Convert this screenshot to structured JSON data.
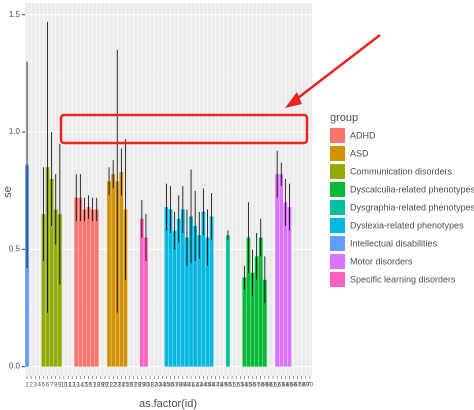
{
  "chart_data": {
    "type": "bar",
    "ylabel": "se",
    "xlabel": "as.factor(id)",
    "legend_title": "group",
    "legend": "right",
    "grid": true,
    "ylim": [
      -0.04,
      1.55
    ],
    "yticks": [
      {
        "value": 0,
        "label": "0.0"
      },
      0.5,
      {
        "value": 1,
        "label": "1.0"
      },
      1.5
    ],
    "categories": [
      "1",
      "2",
      "3",
      "4",
      "5",
      "6",
      "7",
      "8",
      "9",
      "10",
      "11",
      "12",
      "13",
      "14",
      "15",
      "16",
      "17",
      "18",
      "19",
      "20",
      "21",
      "22",
      "23",
      "24",
      "25",
      "26",
      "27",
      "28",
      "29",
      "30",
      "31",
      "32",
      "33",
      "34",
      "35",
      "36",
      "37",
      "38",
      "39",
      "40",
      "41",
      "42",
      "43",
      "44",
      "45",
      "46",
      "47",
      "48",
      "49",
      "50",
      "51",
      "52",
      "53",
      "54",
      "55",
      "56",
      "57",
      "58",
      "59",
      "60",
      "61",
      "62",
      "63",
      "64",
      "65",
      "66",
      "67",
      "68",
      "69",
      "70"
    ],
    "values": [
      0.86,
      null,
      null,
      null,
      0.65,
      0.85,
      0.8,
      0.67,
      0.65,
      null,
      null,
      null,
      0.72,
      0.72,
      0.67,
      0.68,
      0.67,
      0.67,
      null,
      null,
      0.79,
      0.82,
      0.79,
      0.83,
      0.67,
      null,
      null,
      null,
      0.63,
      0.55,
      null,
      null,
      null,
      null,
      0.68,
      0.67,
      0.58,
      0.63,
      0.67,
      0.55,
      0.64,
      0.6,
      0.56,
      0.66,
      0.55,
      0.64,
      null,
      null,
      null,
      0.56,
      null,
      null,
      null,
      0.38,
      0.55,
      0.4,
      0.47,
      0.55,
      0.37,
      null,
      null,
      0.82,
      0.82,
      0.7,
      0.68,
      null,
      null,
      null,
      null,
      null
    ],
    "errors": [
      0.44,
      null,
      null,
      null,
      0.2,
      0.62,
      0.2,
      0.15,
      0.3,
      null,
      null,
      null,
      0.1,
      0.1,
      0.05,
      0.05,
      0.05,
      0.05,
      null,
      null,
      0.06,
      0.06,
      0.56,
      0.1,
      0.3,
      null,
      null,
      null,
      0.08,
      0.1,
      null,
      null,
      null,
      null,
      0.1,
      0.1,
      0.08,
      0.1,
      0.1,
      0.12,
      0.2,
      0.15,
      0.1,
      0.1,
      0.12,
      0.1,
      null,
      null,
      null,
      0.02,
      null,
      null,
      null,
      0.05,
      0.15,
      0.1,
      0.1,
      0.08,
      0.1,
      null,
      null,
      0.1,
      0.05,
      0.1,
      0.1,
      null,
      null,
      null,
      null,
      null
    ],
    "groups": [
      "Intellectual disabilities",
      null,
      null,
      null,
      "Communication disorders",
      "Communication disorders",
      "Communication disorders",
      "Communication disorders",
      "Communication disorders",
      null,
      null,
      null,
      "ADHD",
      "ADHD",
      "ADHD",
      "ADHD",
      "ADHD",
      "ADHD",
      null,
      null,
      "ASD",
      "ASD",
      "ASD",
      "ASD",
      "ASD",
      null,
      null,
      null,
      "Specific learning disorders",
      "Specific learning disorders",
      null,
      null,
      null,
      null,
      "Dyslexia-related phenotypes",
      "Dyslexia-related phenotypes",
      "Dyslexia-related phenotypes",
      "Dyslexia-related phenotypes",
      "Dyslexia-related phenotypes",
      "Dyslexia-related phenotypes",
      "Dyslexia-related phenotypes",
      "Dyslexia-related phenotypes",
      "Dyslexia-related phenotypes",
      "Dyslexia-related phenotypes",
      "Dyslexia-related phenotypes",
      "Dyslexia-related phenotypes",
      null,
      null,
      null,
      "Dysgraphia-related phenotypes",
      null,
      null,
      null,
      "Dyscalculia-related phenotypes",
      "Dyscalculia-related phenotypes",
      "Dyscalculia-related phenotypes",
      "Dyscalculia-related phenotypes",
      "Dyscalculia-related phenotypes",
      "Dyscalculia-related phenotypes",
      null,
      null,
      "Motor disorders",
      "Motor disorders",
      "Motor disorders",
      "Motor disorders",
      null,
      null,
      null,
      null,
      null
    ],
    "series": [
      {
        "name": "ADHD",
        "color": "#F8766D"
      },
      {
        "name": "ASD",
        "color": "#D39200"
      },
      {
        "name": "Communication disorders",
        "color": "#93AA00"
      },
      {
        "name": "Dyscalculia-related phenotypes",
        "color": "#00BA38"
      },
      {
        "name": "Dysgraphia-related phenotypes",
        "color": "#00C19F"
      },
      {
        "name": "Dyslexia-related phenotypes",
        "color": "#00B9E3"
      },
      {
        "name": "Intellectual disabilities",
        "color": "#619CFF"
      },
      {
        "name": "Motor disorders",
        "color": "#DB72FB"
      },
      {
        "name": "Specific learning disorders",
        "color": "#FF61C3"
      }
    ]
  }
}
